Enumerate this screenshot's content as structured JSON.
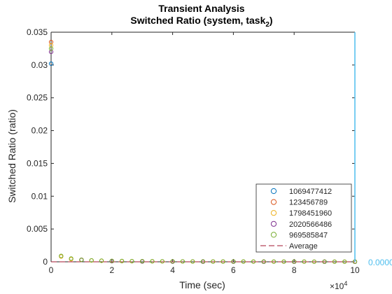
{
  "chart_data": {
    "type": "scatter",
    "title": "Transient Analysis",
    "subtitle_prefix": "Switched Ratio (system, task",
    "subtitle_subscript": "2",
    "subtitle_suffix": ")",
    "xlabel": "Time (sec)",
    "ylabel": "Switched Ratio (ratio)",
    "xlim": [
      0,
      100000
    ],
    "ylim": [
      0,
      0.035
    ],
    "x_ticks": [
      0,
      20000,
      40000,
      60000,
      80000,
      100000
    ],
    "x_tick_labels": [
      "0",
      "2",
      "4",
      "6",
      "8",
      "10"
    ],
    "x_exponent_base": "×10",
    "x_exponent_power": "4",
    "y_ticks": [
      0,
      0.005,
      0.01,
      0.015,
      0.02,
      0.025,
      0.03,
      0.035
    ],
    "y_tick_labels": [
      "0",
      "0.005",
      "0.01",
      "0.015",
      "0.02",
      "0.025",
      "0.03",
      "0.035"
    ],
    "grid": false,
    "legend_position": "bottom-right",
    "series": [
      {
        "name": "1069477412",
        "color": "#0072BD",
        "x": [
          0,
          10000,
          20000,
          30000,
          40000,
          50000,
          60000,
          70000,
          80000,
          90000,
          100000
        ],
        "y": [
          0.0302,
          0.0003,
          0.0001,
          5e-05,
          3e-05,
          2e-05,
          2e-05,
          1e-05,
          1e-05,
          1e-05,
          1e-05
        ]
      },
      {
        "name": "123456789",
        "color": "#D95319",
        "x": [
          0,
          10000,
          20000,
          30000,
          40000,
          50000,
          60000,
          70000,
          80000,
          90000,
          100000
        ],
        "y": [
          0.0335,
          0.0003,
          0.0001,
          5e-05,
          3e-05,
          2e-05,
          2e-05,
          1e-05,
          1e-05,
          1e-05,
          1e-05
        ]
      },
      {
        "name": "1798451960",
        "color": "#EDB120",
        "x": [
          0,
          3300,
          6600,
          10000,
          13300,
          16600,
          20000,
          23300,
          26600,
          30000,
          33300,
          36600,
          40000,
          43300,
          46600,
          50000,
          53300,
          56600,
          60000,
          63300,
          66600,
          70000,
          73300,
          76600,
          80000,
          83300,
          86600,
          90000,
          93300,
          96600,
          100000
        ],
        "y": [
          0.033,
          0.0008,
          0.0004,
          0.0003,
          0.0002,
          0.00015,
          0.00012,
          0.0001,
          9e-05,
          8e-05,
          7e-05,
          6e-05,
          5e-05,
          5e-05,
          4e-05,
          4e-05,
          4e-05,
          3e-05,
          3e-05,
          3e-05,
          3e-05,
          3e-05,
          2e-05,
          2e-05,
          2e-05,
          2e-05,
          2e-05,
          2e-05,
          2e-05,
          2e-05,
          2e-05
        ]
      },
      {
        "name": "2020566486",
        "color": "#7E2F8E",
        "x": [
          0,
          10000,
          20000,
          30000,
          40000,
          50000,
          60000,
          70000,
          80000,
          90000,
          100000
        ],
        "y": [
          0.032,
          0.0003,
          0.0001,
          5e-05,
          3e-05,
          2e-05,
          2e-05,
          1e-05,
          1e-05,
          1e-05,
          1e-05
        ]
      },
      {
        "name": "969585847",
        "color": "#77AC30",
        "x": [
          0,
          3300,
          6600,
          10000,
          13300,
          16600,
          20000,
          23300,
          26600,
          30000,
          33300,
          36600,
          40000,
          43300,
          46600,
          50000,
          53300,
          56600,
          60000,
          63300,
          66600,
          70000,
          73300,
          76600,
          80000,
          83300,
          86600,
          90000,
          93300,
          96600,
          100000
        ],
        "y": [
          0.0325,
          0.0009,
          0.0005,
          0.0003,
          0.00022,
          0.00017,
          0.00014,
          0.00012,
          0.0001,
          9e-05,
          8e-05,
          7e-05,
          6e-05,
          6e-05,
          5e-05,
          5e-05,
          4e-05,
          4e-05,
          4e-05,
          4e-05,
          3e-05,
          3e-05,
          3e-05,
          3e-05,
          3e-05,
          3e-05,
          2e-05,
          2e-05,
          2e-05,
          2e-05,
          2e-05
        ]
      }
    ],
    "average": {
      "name": "Average",
      "color": "#A2142F",
      "x": [
        0,
        100000
      ],
      "y": [
        0,
        0
      ]
    },
    "marker_line": {
      "x": 100000,
      "color": "#4DBEEE",
      "label": "0.0000"
    }
  }
}
